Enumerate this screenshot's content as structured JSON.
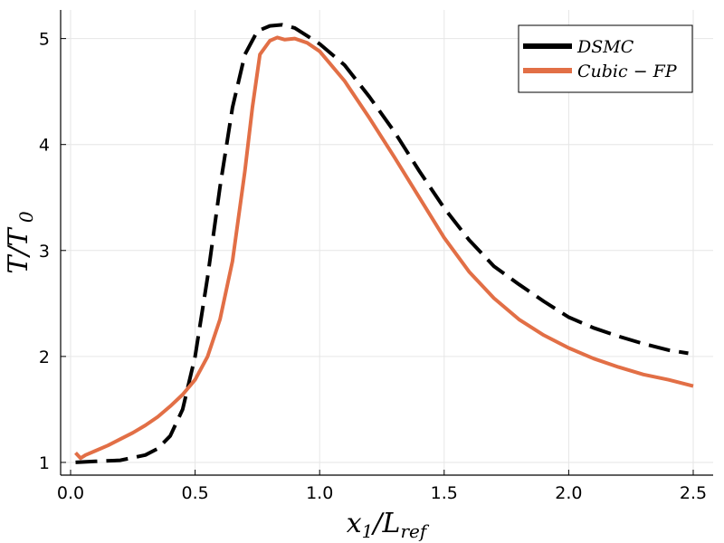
{
  "chart_data": {
    "type": "line",
    "xlabel": "x₁/L_ref",
    "ylabel": "T/T₀",
    "xlim": [
      -0.04,
      2.58
    ],
    "ylim": [
      0.88,
      5.27
    ],
    "x_ticks": [
      0.0,
      0.5,
      1.0,
      1.5,
      2.0,
      2.5
    ],
    "x_tick_labels": [
      "0.0",
      "0.5",
      "1.0",
      "1.5",
      "2.0",
      "2.5"
    ],
    "y_ticks": [
      1,
      2,
      3,
      4,
      5
    ],
    "y_tick_labels": [
      "1",
      "2",
      "3",
      "4",
      "5"
    ],
    "grid": true,
    "legend_position": "top-right",
    "series": [
      {
        "name": "DSMC",
        "color": "#000000",
        "style": "dashed",
        "x": [
          0.02,
          0.1,
          0.2,
          0.3,
          0.35,
          0.4,
          0.45,
          0.5,
          0.55,
          0.6,
          0.65,
          0.7,
          0.75,
          0.8,
          0.85,
          0.9,
          1.0,
          1.1,
          1.2,
          1.3,
          1.4,
          1.5,
          1.6,
          1.7,
          1.8,
          1.9,
          2.0,
          2.1,
          2.2,
          2.3,
          2.4,
          2.48
        ],
        "y": [
          1.0,
          1.01,
          1.02,
          1.07,
          1.13,
          1.25,
          1.5,
          2.0,
          2.75,
          3.6,
          4.35,
          4.85,
          5.07,
          5.12,
          5.13,
          5.1,
          4.95,
          4.75,
          4.45,
          4.12,
          3.75,
          3.4,
          3.1,
          2.85,
          2.68,
          2.52,
          2.37,
          2.27,
          2.19,
          2.12,
          2.06,
          2.03
        ]
      },
      {
        "name": "Cubic − FP",
        "color": "#e26f46",
        "style": "solid",
        "x": [
          0.02,
          0.04,
          0.06,
          0.1,
          0.15,
          0.2,
          0.25,
          0.3,
          0.35,
          0.4,
          0.45,
          0.5,
          0.55,
          0.6,
          0.65,
          0.7,
          0.73,
          0.76,
          0.8,
          0.83,
          0.86,
          0.9,
          0.95,
          1.0,
          1.1,
          1.2,
          1.3,
          1.4,
          1.5,
          1.6,
          1.7,
          1.8,
          1.9,
          2.0,
          2.1,
          2.2,
          2.3,
          2.4,
          2.5
        ],
        "y": [
          1.09,
          1.04,
          1.07,
          1.11,
          1.16,
          1.22,
          1.28,
          1.35,
          1.43,
          1.53,
          1.64,
          1.78,
          2.0,
          2.35,
          2.9,
          3.75,
          4.35,
          4.85,
          4.98,
          5.01,
          4.99,
          5.0,
          4.96,
          4.88,
          4.6,
          4.25,
          3.88,
          3.5,
          3.12,
          2.8,
          2.55,
          2.35,
          2.2,
          2.08,
          1.98,
          1.9,
          1.83,
          1.78,
          1.72
        ]
      }
    ]
  }
}
